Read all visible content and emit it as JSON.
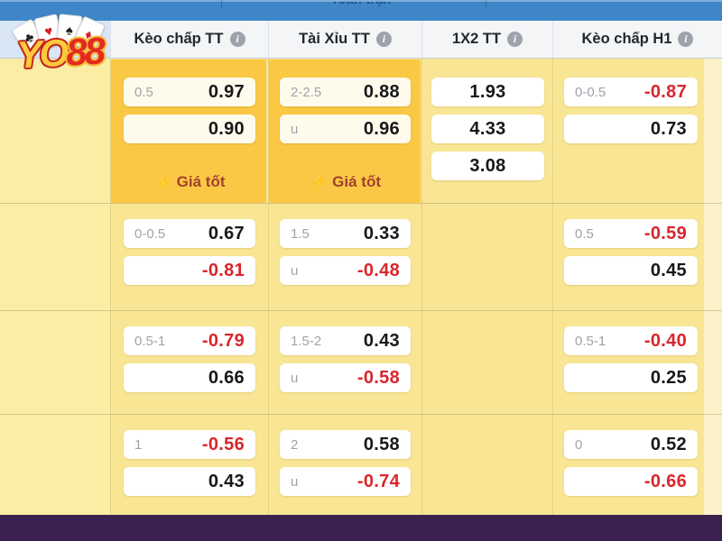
{
  "top_bar": {
    "title": "Toàn trận"
  },
  "brand": {
    "yo": "YO",
    "n88": "88",
    "card_suits": [
      "♣",
      "♥",
      "♠",
      "♦"
    ]
  },
  "header": {
    "columns": [
      {
        "label": "Kèo chấp TT"
      },
      {
        "label": "Tài Xỉu TT"
      },
      {
        "label": "1X2 TT"
      },
      {
        "label": "Kèo chấp H1"
      }
    ]
  },
  "good_price_badge": "Giá tốt",
  "groups": [
    {
      "highlight": true,
      "keo_chap_tt": {
        "badge": true,
        "rows": [
          {
            "label": "0.5",
            "value": "0.97"
          },
          {
            "label": "",
            "value": "0.90"
          }
        ]
      },
      "tai_xiu_tt": {
        "badge": true,
        "rows": [
          {
            "label": "2-2.5",
            "value": "0.88"
          },
          {
            "label": "u",
            "value": "0.96"
          }
        ]
      },
      "x12_tt": {
        "values": [
          "1.93",
          "4.33",
          "3.08"
        ]
      },
      "keo_chap_h1": {
        "rows": [
          {
            "label": "0-0.5",
            "value": "-0.87"
          },
          {
            "label": "",
            "value": "0.73"
          }
        ]
      }
    },
    {
      "keo_chap_tt": {
        "rows": [
          {
            "label": "0-0.5",
            "value": "0.67"
          },
          {
            "label": "",
            "value": "-0.81"
          }
        ]
      },
      "tai_xiu_tt": {
        "rows": [
          {
            "label": "1.5",
            "value": "0.33"
          },
          {
            "label": "u",
            "value": "-0.48"
          }
        ]
      },
      "x12_tt": {
        "values": []
      },
      "keo_chap_h1": {
        "rows": [
          {
            "label": "0.5",
            "value": "-0.59"
          },
          {
            "label": "",
            "value": "0.45"
          }
        ]
      }
    },
    {
      "keo_chap_tt": {
        "rows": [
          {
            "label": "0.5-1",
            "value": "-0.79"
          },
          {
            "label": "",
            "value": "0.66"
          }
        ]
      },
      "tai_xiu_tt": {
        "rows": [
          {
            "label": "1.5-2",
            "value": "0.43"
          },
          {
            "label": "u",
            "value": "-0.58"
          }
        ]
      },
      "x12_tt": {
        "values": []
      },
      "keo_chap_h1": {
        "rows": [
          {
            "label": "0.5-1",
            "value": "-0.40"
          },
          {
            "label": "",
            "value": "0.25"
          }
        ]
      }
    },
    {
      "keo_chap_tt": {
        "rows": [
          {
            "label": "1",
            "value": "-0.56"
          },
          {
            "label": "",
            "value": "0.43"
          }
        ]
      },
      "tai_xiu_tt": {
        "rows": [
          {
            "label": "2",
            "value": "0.58"
          },
          {
            "label": "u",
            "value": "-0.74"
          }
        ]
      },
      "x12_tt": {
        "values": []
      },
      "keo_chap_h1": {
        "rows": [
          {
            "label": "0",
            "value": "0.52"
          },
          {
            "label": "",
            "value": "-0.66"
          }
        ]
      }
    }
  ],
  "colors": {
    "top_bar_blue": "#3E86C7",
    "table_yellow": "#F9E695",
    "left_column_yellow": "#FBEDA4",
    "highlight_amber": "#FBC845",
    "negative_red": "#D8262C",
    "positive_black": "#17181A",
    "badge_text": "#A2402F",
    "bottom_bar_purple": "#3A2150"
  }
}
